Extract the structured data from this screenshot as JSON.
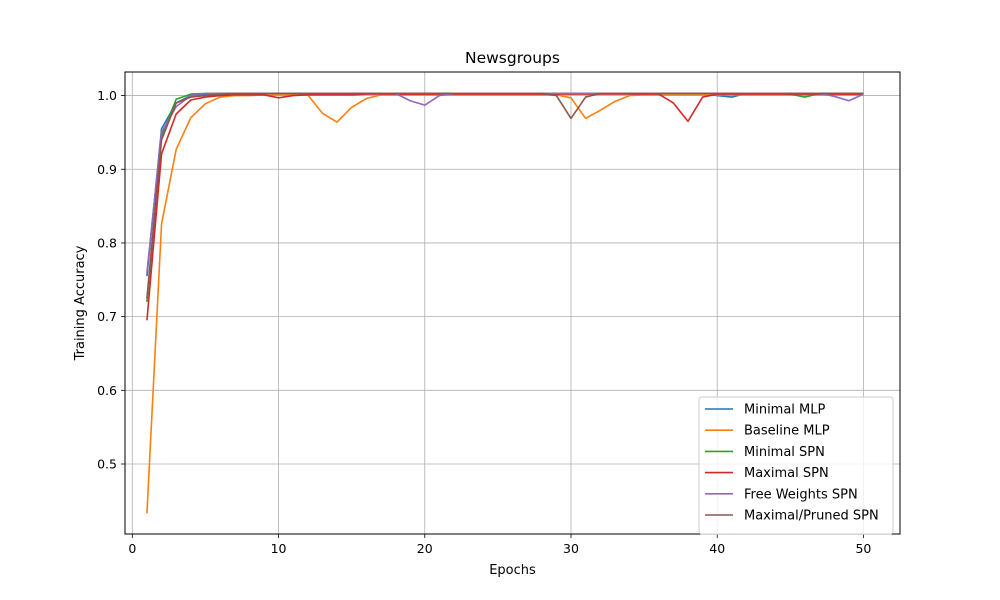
{
  "chart_data": {
    "type": "line",
    "title": "Newsgroups",
    "xlabel": "Epochs",
    "ylabel": "Training Accuracy",
    "xlim": [
      -0.5,
      52.5
    ],
    "ylim": [
      0.405,
      1.032
    ],
    "xticks": [
      0,
      10,
      20,
      30,
      40,
      50
    ],
    "yticks": [
      0.5,
      0.6,
      0.7,
      0.8,
      0.9,
      1.0
    ],
    "ytick_labels": [
      "0.5",
      "0.6",
      "0.7",
      "0.8",
      "0.9",
      "1.0"
    ],
    "grid": true,
    "legend_position": "bottom-right",
    "x": [
      1,
      2,
      3,
      4,
      5,
      6,
      7,
      8,
      9,
      10,
      11,
      12,
      13,
      14,
      15,
      16,
      17,
      18,
      19,
      20,
      21,
      22,
      23,
      24,
      25,
      26,
      27,
      28,
      29,
      30,
      31,
      32,
      33,
      34,
      35,
      36,
      37,
      38,
      39,
      40,
      41,
      42,
      43,
      44,
      45,
      46,
      47,
      48,
      49,
      50
    ],
    "series": [
      {
        "name": "Minimal MLP",
        "color": "#1f77b4",
        "values": [
          0.755,
          0.955,
          0.99,
          1.0,
          1.002,
          1.003,
          1.003,
          1.003,
          1.003,
          1.003,
          1.003,
          1.003,
          1.003,
          1.003,
          1.003,
          1.003,
          1.003,
          1.003,
          1.003,
          1.003,
          1.003,
          1.003,
          1.003,
          1.003,
          1.003,
          1.003,
          1.003,
          1.003,
          1.003,
          1.003,
          1.003,
          1.003,
          1.003,
          1.003,
          1.003,
          1.003,
          1.003,
          1.003,
          1.003,
          1.0,
          0.998,
          1.003,
          1.003,
          1.003,
          1.003,
          1.003,
          1.003,
          1.003,
          1.003,
          1.003
        ]
      },
      {
        "name": "Baseline MLP",
        "color": "#ff7f0e",
        "values": [
          0.433,
          0.826,
          0.927,
          0.97,
          0.989,
          0.998,
          1.0,
          1.0,
          1.001,
          1.001,
          1.001,
          1.001,
          0.976,
          0.964,
          0.984,
          0.996,
          1.001,
          1.001,
          1.001,
          1.001,
          1.001,
          1.001,
          1.001,
          1.001,
          1.001,
          1.001,
          1.001,
          1.001,
          1.001,
          0.997,
          0.969,
          0.98,
          0.992,
          1.0,
          1.001,
          1.001,
          1.001,
          1.001,
          1.001,
          1.001,
          1.001,
          1.001,
          1.001,
          1.001,
          1.001,
          1.001,
          1.001,
          1.001,
          1.001,
          1.001
        ]
      },
      {
        "name": "Minimal SPN",
        "color": "#2ca02c",
        "values": [
          0.72,
          0.945,
          0.995,
          1.002,
          1.003,
          1.003,
          1.003,
          1.003,
          1.003,
          1.003,
          1.003,
          1.003,
          1.003,
          1.003,
          1.003,
          1.003,
          1.003,
          1.003,
          1.003,
          1.003,
          1.003,
          1.003,
          1.003,
          1.003,
          1.003,
          1.003,
          1.003,
          1.003,
          1.003,
          1.003,
          1.003,
          1.003,
          1.003,
          1.003,
          1.003,
          1.003,
          1.003,
          1.003,
          1.003,
          1.003,
          1.003,
          1.003,
          1.003,
          1.003,
          1.002,
          0.998,
          1.003,
          1.003,
          1.003,
          1.003
        ]
      },
      {
        "name": "Maximal SPN",
        "color": "#d62728",
        "values": [
          0.695,
          0.921,
          0.975,
          0.994,
          0.998,
          1.0,
          1.001,
          1.001,
          1.001,
          0.997,
          1.0,
          1.001,
          1.001,
          1.001,
          1.001,
          1.002,
          1.002,
          1.002,
          1.002,
          1.002,
          1.002,
          1.002,
          1.002,
          1.002,
          1.002,
          1.002,
          1.002,
          1.002,
          1.002,
          1.002,
          1.002,
          1.002,
          1.002,
          1.002,
          1.002,
          1.002,
          0.99,
          0.965,
          0.998,
          1.002,
          1.002,
          1.002,
          1.002,
          1.002,
          1.002,
          1.002,
          1.002,
          1.002,
          1.002,
          1.002
        ]
      },
      {
        "name": "Free Weights SPN",
        "color": "#9467bd",
        "values": [
          0.76,
          0.95,
          0.985,
          1.0,
          1.003,
          1.003,
          1.003,
          1.003,
          1.003,
          1.003,
          1.003,
          1.003,
          1.003,
          1.003,
          1.003,
          1.003,
          1.003,
          1.003,
          0.993,
          0.987,
          1.0,
          1.003,
          1.003,
          1.003,
          1.003,
          1.003,
          1.003,
          1.003,
          1.003,
          1.003,
          1.003,
          1.003,
          1.003,
          1.003,
          1.003,
          1.003,
          1.003,
          1.003,
          1.003,
          1.003,
          1.003,
          1.003,
          1.003,
          1.003,
          1.003,
          1.003,
          1.003,
          0.999,
          0.993,
          1.002
        ]
      },
      {
        "name": "Maximal/Pruned SPN",
        "color": "#8c564b",
        "values": [
          0.725,
          0.94,
          0.99,
          0.998,
          1.0,
          1.002,
          1.003,
          1.003,
          1.003,
          1.003,
          1.003,
          1.003,
          1.003,
          1.003,
          1.003,
          1.003,
          1.003,
          1.003,
          1.003,
          1.003,
          1.003,
          1.003,
          1.003,
          1.003,
          1.003,
          1.003,
          1.003,
          1.003,
          1.0,
          0.969,
          0.998,
          1.003,
          1.003,
          1.003,
          1.003,
          1.003,
          1.003,
          1.003,
          1.003,
          1.003,
          1.003,
          1.003,
          1.003,
          1.003,
          1.003,
          1.003,
          1.003,
          1.003,
          1.003,
          1.003
        ]
      }
    ]
  }
}
